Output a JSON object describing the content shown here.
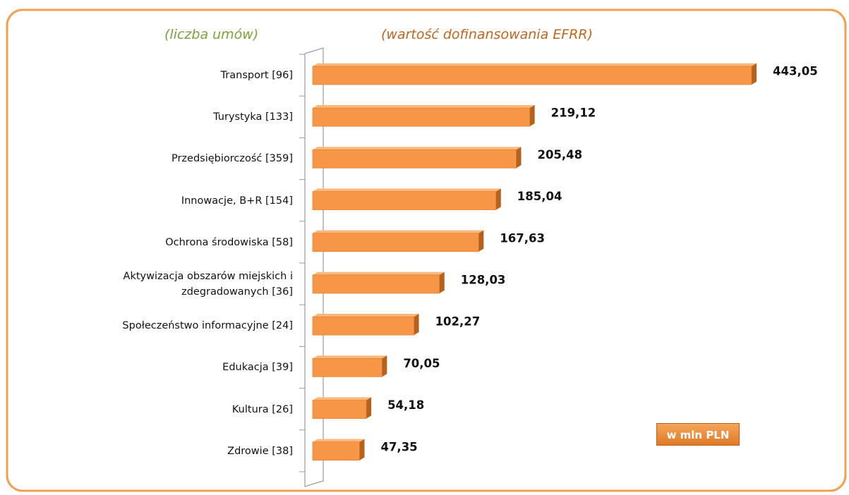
{
  "chart_data": {
    "type": "bar",
    "orientation": "horizontal",
    "left_header": "(liczba umów)",
    "right_header": "(wartość dofinansowania EFRR)",
    "unit_label": "w mln PLN",
    "categories": [
      "Transport [96]",
      "Turystyka [133]",
      "Przedsiębiorczość [359]",
      "Innowacje, B+R [154]",
      "Ochrona środowiska [58]",
      "Aktywizacja obszarów miejskich i\nzdegradowanych [36]",
      "Społeczeństwo informacyjne [24]",
      "Edukacja [39]",
      "Kultura [26]",
      "Zdrowie [38]"
    ],
    "values": [
      443.05,
      219.12,
      205.48,
      185.04,
      167.63,
      128.03,
      102.27,
      70.05,
      54.18,
      47.35
    ],
    "value_labels": [
      "443,05",
      "219,12",
      "205,48",
      "185,04",
      "167,63",
      "128,03",
      "102,27",
      "70,05",
      "54,18",
      "47,35"
    ],
    "color": "#f79646"
  }
}
